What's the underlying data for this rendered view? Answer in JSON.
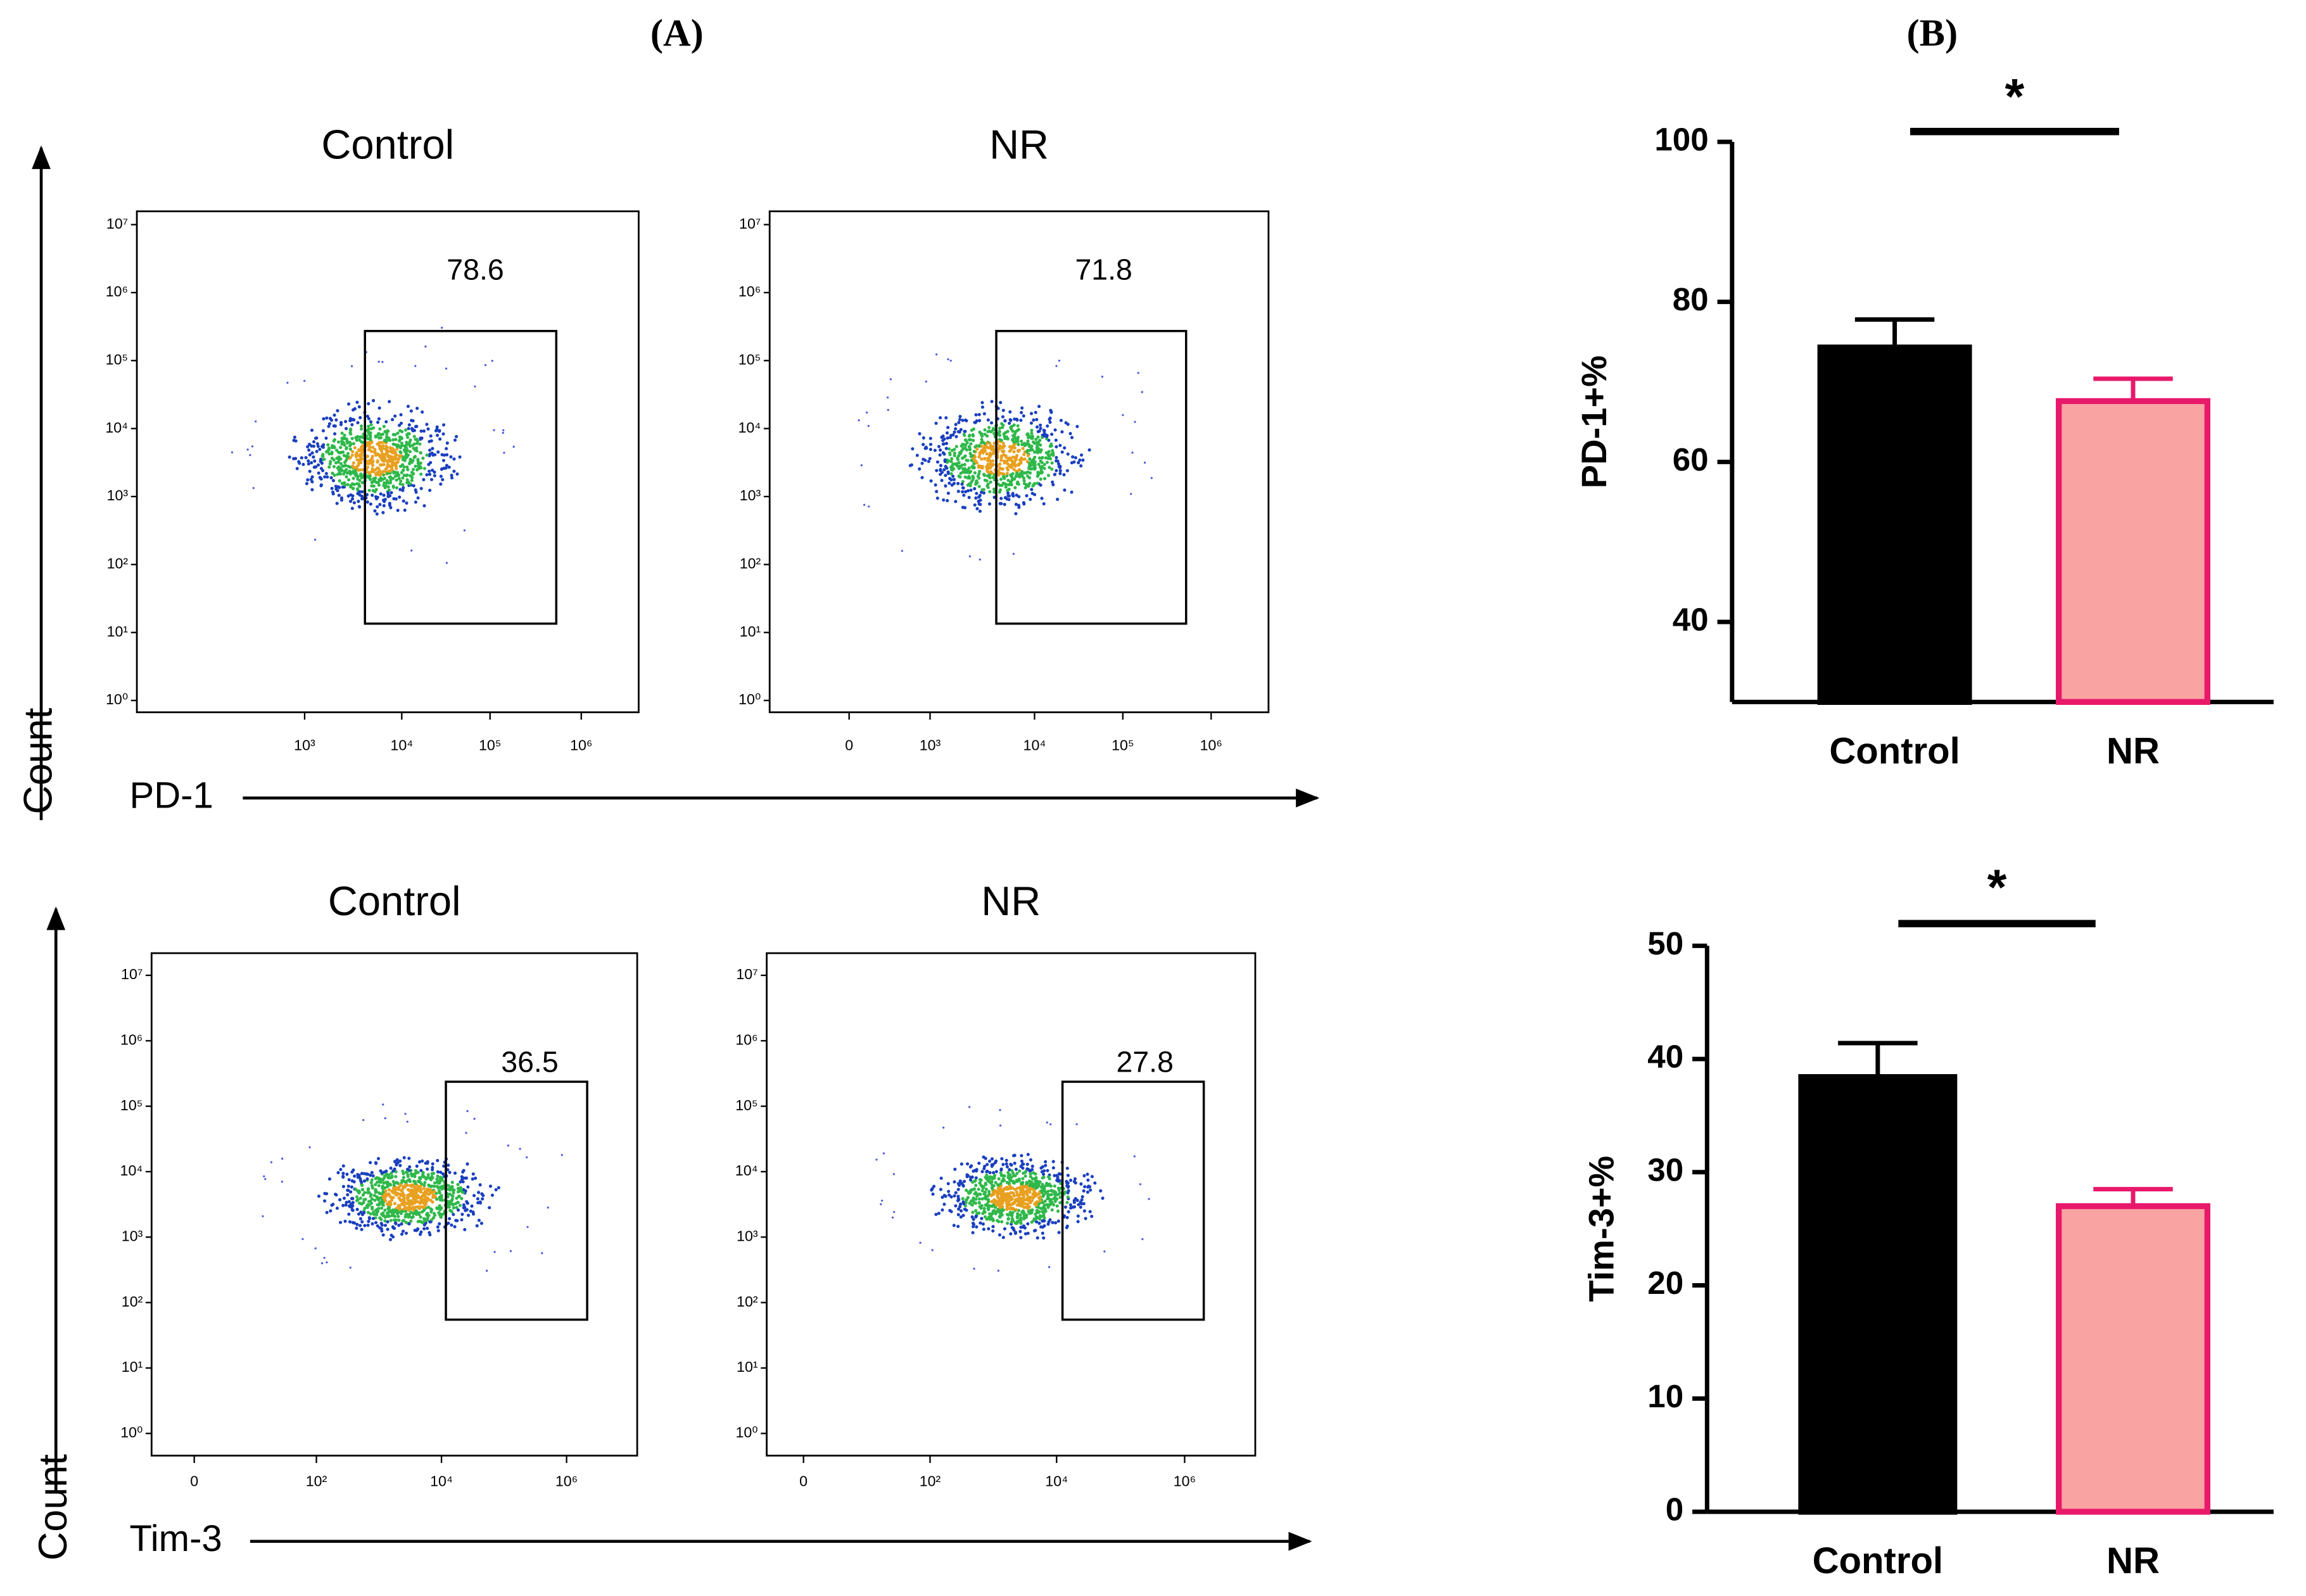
{
  "panel_labels": [
    "(A)",
    "(B)"
  ],
  "flow_plots": [
    {
      "marker": "PD-1",
      "y_label": "Count",
      "y_scale": "log",
      "yticks": [
        {
          "value": 1,
          "label": "10⁰"
        },
        {
          "value": 10,
          "label": "10¹"
        },
        {
          "value": 100,
          "label": "10²"
        },
        {
          "value": 1000,
          "label": "10³"
        },
        {
          "value": 10000,
          "label": "10⁴"
        },
        {
          "value": 100000,
          "label": "10⁵"
        },
        {
          "value": 1000000,
          "label": "10⁶"
        },
        {
          "value": 10000000,
          "label": "10⁷"
        }
      ],
      "groups": [
        {
          "title": "Control",
          "gate_value": 78.6,
          "xticks": [
            {
              "value": 1000,
              "label": "10³"
            },
            {
              "value": 10000,
              "label": "10⁴"
            },
            {
              "value": 100000,
              "label": "10⁵"
            },
            {
              "value": 1000000,
              "label": "10⁶"
            }
          ]
        },
        {
          "title": "NR",
          "gate_value": 71.8,
          "xticks": [
            0,
            {
              "value": 1000,
              "label": "10³"
            },
            {
              "value": 10000,
              "label": "10⁴"
            },
            {
              "value": 100000,
              "label": "10⁵"
            },
            {
              "value": 1000000,
              "label": "10⁶"
            }
          ]
        }
      ]
    },
    {
      "marker": "Tim-3",
      "y_label": "Count",
      "y_scale": "log",
      "yticks": [
        {
          "value": 1,
          "label": "10⁰"
        },
        {
          "value": 10,
          "label": "10¹"
        },
        {
          "value": 100,
          "label": "10²"
        },
        {
          "value": 1000,
          "label": "10³"
        },
        {
          "value": 10000,
          "label": "10⁴"
        },
        {
          "value": 100000,
          "label": "10⁵"
        },
        {
          "value": 1000000,
          "label": "10⁶"
        },
        {
          "value": 10000000,
          "label": "10⁷"
        }
      ],
      "groups": [
        {
          "title": "Control",
          "gate_value": 36.5,
          "xticks": [
            0,
            {
              "value": 100,
              "label": "10²"
            },
            {
              "value": 10000,
              "label": "10⁴"
            },
            {
              "value": 1000000,
              "label": "10⁶"
            }
          ]
        },
        {
          "title": "NR",
          "gate_value": 27.8,
          "xticks": [
            0,
            {
              "value": 100,
              "label": "10²"
            },
            {
              "value": 10000,
              "label": "10⁴"
            },
            {
              "value": 1000000,
              "label": "10⁶"
            }
          ]
        }
      ]
    }
  ],
  "chart_data": [
    {
      "type": "bar",
      "y_label": "PD-1+%",
      "categories": [
        "Control",
        "NR"
      ],
      "values": [
        74.3,
        67.6
      ],
      "errors": [
        3.5,
        2.8
      ],
      "colors": [
        "#000000",
        "#f9a3a3"
      ],
      "edge_colors": [
        "#000000",
        "#e8196b"
      ],
      "significance": "*",
      "ylim": [
        30,
        100
      ],
      "yticks": [
        40,
        60,
        80,
        100
      ]
    },
    {
      "type": "bar",
      "y_label": "Tim-3+%",
      "categories": [
        "Control",
        "NR"
      ],
      "values": [
        38.4,
        27.0
      ],
      "errors": [
        3.0,
        1.5
      ],
      "colors": [
        "#000000",
        "#f9a3a3"
      ],
      "edge_colors": [
        "#000000",
        "#e8196b"
      ],
      "significance": "*",
      "ylim": [
        0,
        50
      ],
      "yticks": [
        0,
        10,
        20,
        30,
        40,
        50
      ]
    }
  ]
}
